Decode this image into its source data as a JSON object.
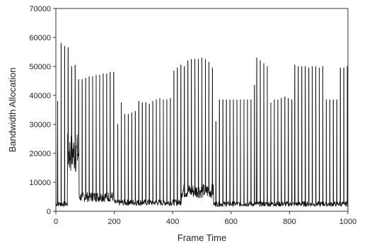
{
  "chart_data": {
    "type": "line",
    "title": "",
    "xlabel": "Frame Time",
    "ylabel": "Bandwidth Allocation",
    "xlim": [
      0,
      1000
    ],
    "ylim": [
      0,
      70000
    ],
    "xticks": [
      0,
      200,
      400,
      600,
      800,
      1000
    ],
    "yticks": [
      0,
      10000,
      20000,
      30000,
      40000,
      50000,
      60000,
      70000
    ],
    "x_tick_labels": [
      "0",
      "200",
      "400",
      "600",
      "800",
      "1000"
    ],
    "y_tick_labels": [
      "0",
      "10000",
      "20000",
      "30000",
      "40000",
      "50000",
      "60000",
      "70000"
    ],
    "grid": false,
    "line_color": "#111111",
    "spikes": [
      {
        "x": 6,
        "y": 38000
      },
      {
        "x": 18,
        "y": 58000
      },
      {
        "x": 30,
        "y": 57000
      },
      {
        "x": 42,
        "y": 56500
      },
      {
        "x": 54,
        "y": 50000
      },
      {
        "x": 66,
        "y": 50500
      },
      {
        "x": 78,
        "y": 45500
      },
      {
        "x": 90,
        "y": 45500
      },
      {
        "x": 102,
        "y": 46000
      },
      {
        "x": 114,
        "y": 46500
      },
      {
        "x": 126,
        "y": 46500
      },
      {
        "x": 138,
        "y": 47000
      },
      {
        "x": 150,
        "y": 47000
      },
      {
        "x": 162,
        "y": 47500
      },
      {
        "x": 174,
        "y": 47500
      },
      {
        "x": 186,
        "y": 48000
      },
      {
        "x": 198,
        "y": 48000
      },
      {
        "x": 212,
        "y": 30000
      },
      {
        "x": 224,
        "y": 37500
      },
      {
        "x": 236,
        "y": 33500
      },
      {
        "x": 248,
        "y": 33500
      },
      {
        "x": 260,
        "y": 34000
      },
      {
        "x": 272,
        "y": 34500
      },
      {
        "x": 284,
        "y": 38000
      },
      {
        "x": 296,
        "y": 37500
      },
      {
        "x": 308,
        "y": 37500
      },
      {
        "x": 320,
        "y": 37000
      },
      {
        "x": 332,
        "y": 38000
      },
      {
        "x": 344,
        "y": 38500
      },
      {
        "x": 356,
        "y": 39000
      },
      {
        "x": 368,
        "y": 38500
      },
      {
        "x": 380,
        "y": 38500
      },
      {
        "x": 392,
        "y": 39000
      },
      {
        "x": 404,
        "y": 48500
      },
      {
        "x": 416,
        "y": 49500
      },
      {
        "x": 428,
        "y": 50500
      },
      {
        "x": 440,
        "y": 50000
      },
      {
        "x": 452,
        "y": 52000
      },
      {
        "x": 464,
        "y": 52500
      },
      {
        "x": 476,
        "y": 52500
      },
      {
        "x": 488,
        "y": 52500
      },
      {
        "x": 500,
        "y": 53000
      },
      {
        "x": 512,
        "y": 52500
      },
      {
        "x": 524,
        "y": 51500
      },
      {
        "x": 536,
        "y": 49500
      },
      {
        "x": 548,
        "y": 31000
      },
      {
        "x": 560,
        "y": 38500
      },
      {
        "x": 572,
        "y": 38500
      },
      {
        "x": 584,
        "y": 38500
      },
      {
        "x": 596,
        "y": 38500
      },
      {
        "x": 608,
        "y": 38500
      },
      {
        "x": 620,
        "y": 38500
      },
      {
        "x": 632,
        "y": 38500
      },
      {
        "x": 644,
        "y": 38500
      },
      {
        "x": 656,
        "y": 38500
      },
      {
        "x": 668,
        "y": 38500
      },
      {
        "x": 680,
        "y": 43500
      },
      {
        "x": 688,
        "y": 53000
      },
      {
        "x": 700,
        "y": 52000
      },
      {
        "x": 712,
        "y": 51000
      },
      {
        "x": 724,
        "y": 50000
      },
      {
        "x": 736,
        "y": 37500
      },
      {
        "x": 748,
        "y": 38500
      },
      {
        "x": 760,
        "y": 38500
      },
      {
        "x": 772,
        "y": 39000
      },
      {
        "x": 784,
        "y": 39500
      },
      {
        "x": 796,
        "y": 39000
      },
      {
        "x": 808,
        "y": 38500
      },
      {
        "x": 818,
        "y": 50500
      },
      {
        "x": 830,
        "y": 50000
      },
      {
        "x": 842,
        "y": 50000
      },
      {
        "x": 854,
        "y": 50000
      },
      {
        "x": 866,
        "y": 49500
      },
      {
        "x": 878,
        "y": 50000
      },
      {
        "x": 890,
        "y": 50000
      },
      {
        "x": 902,
        "y": 49500
      },
      {
        "x": 914,
        "y": 50000
      },
      {
        "x": 926,
        "y": 38500
      },
      {
        "x": 938,
        "y": 38500
      },
      {
        "x": 950,
        "y": 38500
      },
      {
        "x": 962,
        "y": 38500
      },
      {
        "x": 974,
        "y": 49500
      },
      {
        "x": 986,
        "y": 49500
      },
      {
        "x": 998,
        "y": 50000
      }
    ],
    "baseline_segments": [
      {
        "x_start": 0,
        "x_end": 40,
        "y": 2500
      },
      {
        "x_start": 40,
        "x_end": 80,
        "y": 20000
      },
      {
        "x_start": 80,
        "x_end": 200,
        "y": 5000
      },
      {
        "x_start": 200,
        "x_end": 430,
        "y": 3000
      },
      {
        "x_start": 430,
        "x_end": 540,
        "y": 7000
      },
      {
        "x_start": 540,
        "x_end": 1000,
        "y": 2500
      }
    ]
  }
}
